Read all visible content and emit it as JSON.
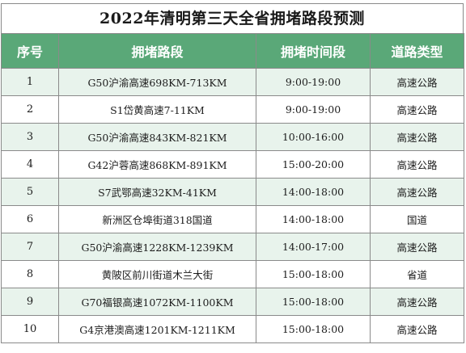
{
  "title": "2022年清明第三天全省拥堵路段预测",
  "headers": [
    "序号",
    "拥堵路段",
    "拥堵时间段",
    "道路类型"
  ],
  "rows": [
    {
      "no": "1",
      "section": "G50沪渝高速698KM-713KM",
      "time": "9:00-19:00",
      "type": "高速公路"
    },
    {
      "no": "2",
      "section": "S1岱黄高速7-11KM",
      "time": "9:00-19:00",
      "type": "高速公路"
    },
    {
      "no": "3",
      "section": "G50沪渝高速843KM-821KM",
      "time": "10:00-16:00",
      "type": "高速公路"
    },
    {
      "no": "4",
      "section": "G42沪蓉高速868KM-891KM",
      "time": "15:00-20:00",
      "type": "高速公路"
    },
    {
      "no": "5",
      "section": "S7武鄂高速32KM-41KM",
      "time": "14:00-18:00",
      "type": "高速公路"
    },
    {
      "no": "6",
      "section": "新洲区仓埠街道318国道",
      "time": "14:00-18:00",
      "type": "国道"
    },
    {
      "no": "7",
      "section": "G50沪渝高速1228KM-1239KM",
      "time": "14:00-17:00",
      "type": "高速公路"
    },
    {
      "no": "8",
      "section": "黄陂区前川街道木兰大街",
      "time": "15:00-18:00",
      "type": "省道"
    },
    {
      "no": "9",
      "section": "G70福银高速1072KM-1100KM",
      "time": "15:00-18:00",
      "type": "高速公路"
    },
    {
      "no": "10",
      "section": "G4京港澳高速1201KM-1211KM",
      "time": "15:00-18:00",
      "type": "高速公路"
    }
  ]
}
